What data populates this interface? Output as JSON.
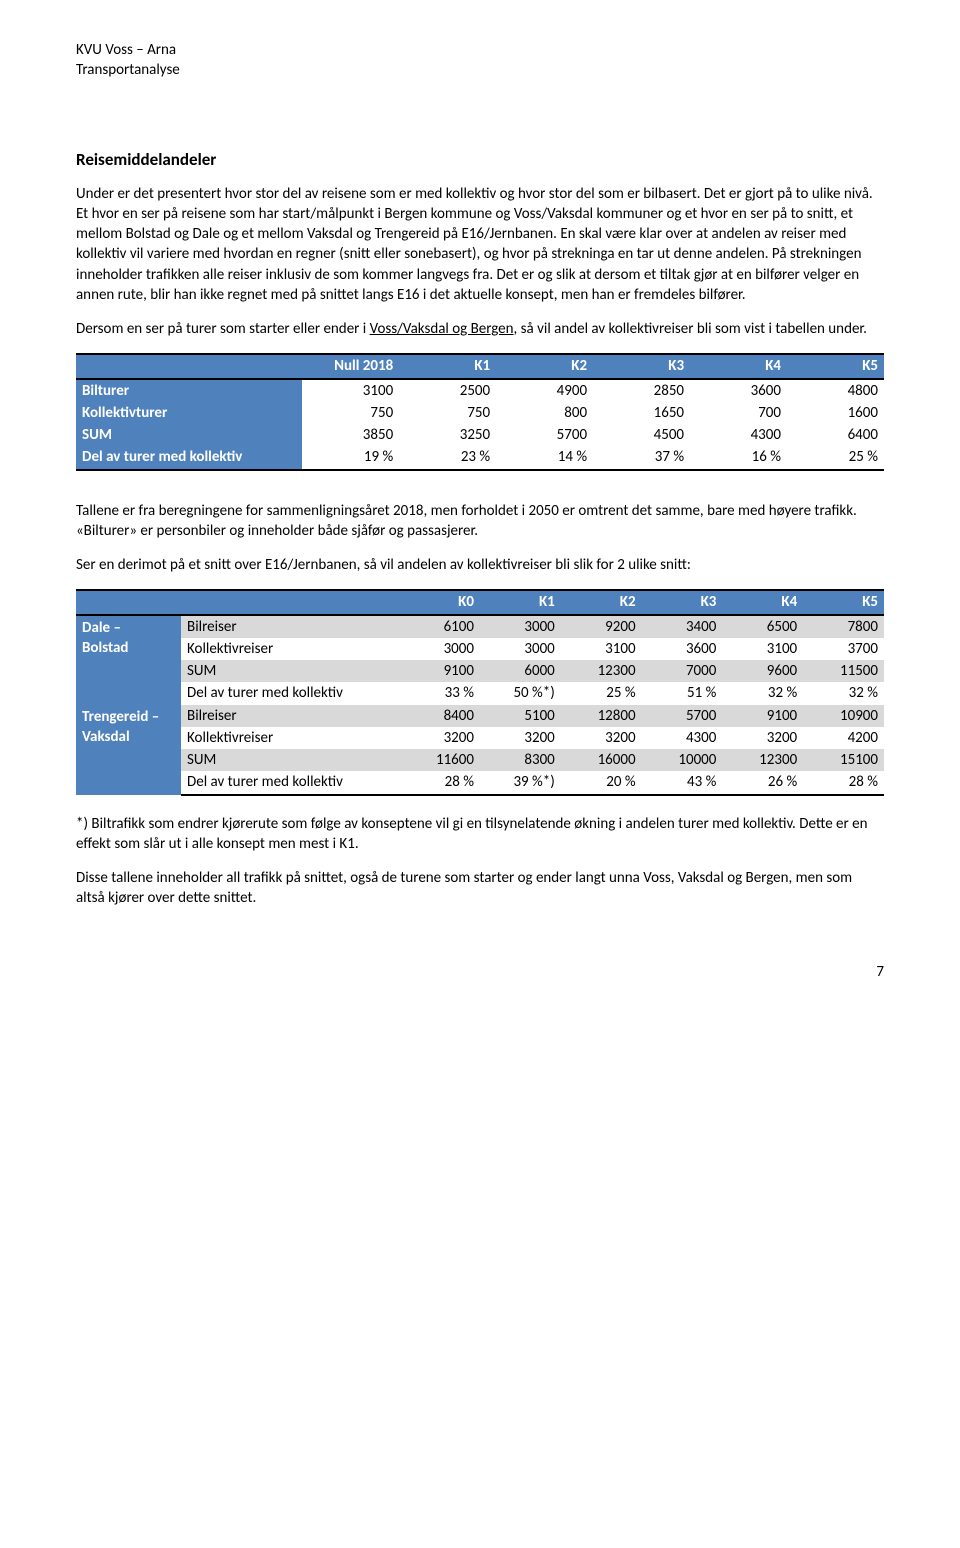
{
  "header": {
    "line1": "KVU Voss – Arna",
    "line2": "Transportanalyse"
  },
  "section_title": "Reisemiddelandeler",
  "para1": "Under er det presentert hvor stor del av reisene som er med kollektiv og hvor stor del som er bilbasert. Det er gjort på to ulike nivå. Et hvor en ser på reisene som har start/målpunkt i Bergen kommune og Voss/Vaksdal kommuner og et hvor en ser på to snitt, et mellom Bolstad og Dale og et mellom Vaksdal og Trengereid på E16/Jernbanen. En skal være klar over at andelen av reiser med kollektiv vil variere med hvordan en regner (snitt eller sonebasert), og hvor på strekninga en tar ut denne andelen. På strekningen inneholder trafikken alle reiser inklusiv de som kommer langvegs fra. Det er og slik at dersom et tiltak gjør at en bilfører velger en annen rute, blir han ikke regnet med på snittet langs E16 i det aktuelle konsept, men han er fremdeles bilfører.",
  "para2_a": "Dersom en ser på turer som starter eller ender i ",
  "para2_u": "Voss/Vaksdal og Bergen",
  "para2_b": ", så vil andel av kollektivreiser bli som vist i tabellen under.",
  "table1": {
    "columns": [
      "",
      "Null 2018",
      "K1",
      "K2",
      "K3",
      "K4",
      "K5"
    ],
    "col_widths": [
      "28%",
      "12%",
      "12%",
      "12%",
      "12%",
      "12%",
      "12%"
    ],
    "header_bg": "#4f81bd",
    "header_fg": "#ffffff",
    "border_color": "#000000",
    "rows": [
      {
        "label": "Bilturer",
        "vals": [
          "3100",
          "2500",
          "4900",
          "2850",
          "3600",
          "4800"
        ]
      },
      {
        "label": "Kollektivturer",
        "vals": [
          "750",
          "750",
          "800",
          "1650",
          "700",
          "1600"
        ]
      },
      {
        "label": "SUM",
        "vals": [
          "3850",
          "3250",
          "5700",
          "4500",
          "4300",
          "6400"
        ]
      },
      {
        "label": "Del av turer med kollektiv",
        "vals": [
          "19 %",
          "23 %",
          "14 %",
          "37 %",
          "16 %",
          "25 %"
        ]
      }
    ]
  },
  "para3": "Tallene er fra beregningene for sammenligningsåret 2018, men forholdet i 2050 er omtrent det samme, bare med høyere trafikk. «Bilturer» er personbiler og inneholder både sjåfør og passasjerer.",
  "para4": "Ser en derimot på et snitt over E16/Jernbanen, så vil andelen av kollektivreiser bli slik for 2 ulike snitt:",
  "table2": {
    "columns": [
      "",
      "",
      "K0",
      "K1",
      "K2",
      "K3",
      "K4",
      "K5"
    ],
    "col_widths": [
      "13%",
      "27%",
      "10%",
      "10%",
      "10%",
      "10%",
      "10%",
      "10%"
    ],
    "header_bg": "#4f81bd",
    "header_fg": "#ffffff",
    "shade_bg": "#d9d9d9",
    "sections": [
      {
        "title_lines": [
          "Dale –",
          "Bolstad"
        ],
        "rows": [
          {
            "label": "Bilreiser",
            "shade": true,
            "vals": [
              "6100",
              "3000",
              "9200",
              "3400",
              "6500",
              "7800"
            ]
          },
          {
            "label": "Kollektivreiser",
            "shade": false,
            "vals": [
              "3000",
              "3000",
              "3100",
              "3600",
              "3100",
              "3700"
            ]
          },
          {
            "label": "SUM",
            "shade": true,
            "vals": [
              "9100",
              "6000",
              "12300",
              "7000",
              "9600",
              "11500"
            ]
          },
          {
            "label": "Del av turer med kollektiv",
            "shade": false,
            "vals": [
              "33 %",
              "50 %*)",
              "25 %",
              "51 %",
              "32 %",
              "32 %"
            ]
          }
        ]
      },
      {
        "title_lines": [
          "Trengereid –",
          "Vaksdal"
        ],
        "rows": [
          {
            "label": "Bilreiser",
            "shade": true,
            "vals": [
              "8400",
              "5100",
              "12800",
              "5700",
              "9100",
              "10900"
            ]
          },
          {
            "label": "Kollektivreiser",
            "shade": false,
            "vals": [
              "3200",
              "3200",
              "3200",
              "4300",
              "3200",
              "4200"
            ]
          },
          {
            "label": "SUM",
            "shade": true,
            "vals": [
              "11600",
              "8300",
              "16000",
              "10000",
              "12300",
              "15100"
            ]
          },
          {
            "label": "Del av turer med kollektiv",
            "shade": false,
            "vals": [
              "28 %",
              "39 %*)",
              "20 %",
              "43 %",
              "26 %",
              "28 %"
            ]
          }
        ]
      }
    ]
  },
  "footnote": "*) Biltrafikk som endrer kjørerute som følge av konseptene vil gi en tilsynelatende økning i andelen turer med kollektiv. Dette er en effekt som slår ut i alle konsept men mest i K1.",
  "para5": "Disse tallene inneholder all trafikk på snittet, også de turene som starter og ender langt unna Voss, Vaksdal og Bergen, men som altså kjører over dette snittet.",
  "page_number": "7"
}
